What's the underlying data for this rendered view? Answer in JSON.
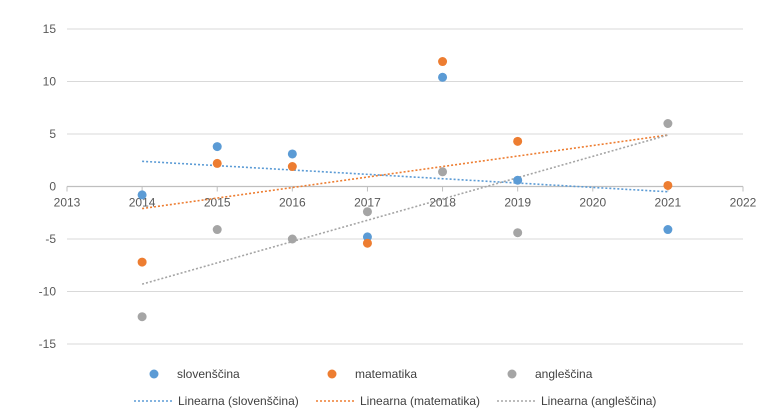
{
  "chart_data": {
    "type": "scatter",
    "xlim": [
      2013,
      2022
    ],
    "ylim": [
      -15,
      15
    ],
    "x_ticks": [
      2013,
      2014,
      2015,
      2016,
      2017,
      2018,
      2019,
      2020,
      2021,
      2022
    ],
    "y_ticks": [
      15,
      10,
      5,
      0,
      -5,
      -10,
      -15
    ],
    "grid": "horizontal",
    "legend_position": "bottom",
    "colors": {
      "slovenscina": "#5b9bd5",
      "matematika": "#ed7d31",
      "anglescina": "#a5a5a5",
      "gridline": "#d9d9d9",
      "axis": "#bfbfbf"
    },
    "series": [
      {
        "key": "slovenscina",
        "name": "slovenščina",
        "x": [
          2014,
          2015,
          2016,
          2017,
          2018,
          2019,
          2021
        ],
        "y": [
          -0.8,
          3.8,
          3.1,
          -4.8,
          10.4,
          0.6,
          -4.1
        ]
      },
      {
        "key": "matematika",
        "name": "matematika",
        "x": [
          2014,
          2015,
          2016,
          2017,
          2018,
          2019,
          2021
        ],
        "y": [
          -7.2,
          2.2,
          1.9,
          -5.4,
          11.9,
          4.3,
          0.1
        ]
      },
      {
        "key": "anglescina",
        "name": "angleščina",
        "x": [
          2014,
          2015,
          2016,
          2017,
          2018,
          2019,
          2021
        ],
        "y": [
          -12.4,
          -4.1,
          -5.0,
          -2.4,
          1.4,
          -4.4,
          6.0
        ]
      }
    ],
    "trendlines": [
      {
        "key": "slovenscina",
        "name": "Linearna (slovenščina)",
        "x": [
          2014,
          2021
        ],
        "y": [
          2.4,
          -0.5
        ]
      },
      {
        "key": "matematika",
        "name": "Linearna (matematika)",
        "x": [
          2014,
          2021
        ],
        "y": [
          -2.1,
          4.9
        ]
      },
      {
        "key": "anglescina",
        "name": "Linearna (angleščina)",
        "x": [
          2014,
          2021
        ],
        "y": [
          -9.3,
          4.9
        ]
      }
    ]
  }
}
